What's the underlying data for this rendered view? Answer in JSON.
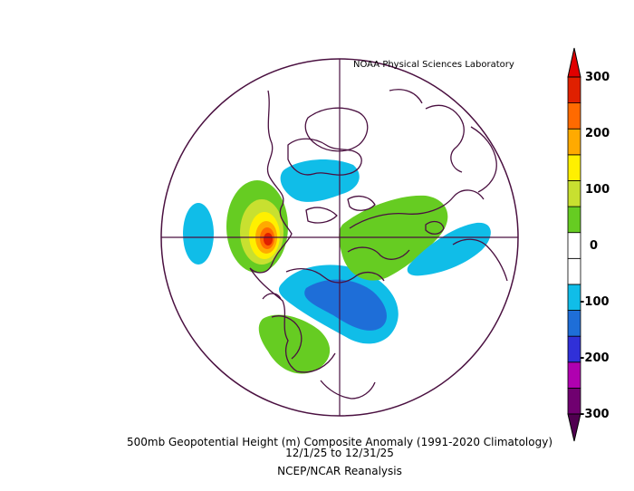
{
  "header": {
    "credit": "NOAA Physical Sciences Laboratory"
  },
  "footer": {
    "title": "500mb Geopotential Height (m) Composite Anomaly (1991-2020 Climatology)",
    "date_range": "12/1/25  to 12/31/25",
    "dataset": "NCEP/NCAR Reanalysis"
  },
  "colorbar": {
    "tick_labels": [
      "300",
      "200",
      "100",
      "0",
      "-100",
      "-200",
      "-300"
    ],
    "colors": [
      "#700070",
      "#b000b0",
      "#3030d8",
      "#1e6ed8",
      "#10bde8",
      "#ffffff",
      "#ffffff",
      "#66cc22",
      "#c8e030",
      "#fff000",
      "#ffaa00",
      "#ff6a00",
      "#e02000"
    ]
  },
  "map": {
    "projection": "north-polar-stereographic",
    "outline_color": "#4a1040",
    "anomaly_features": [
      {
        "label": "positive-pacific-nw",
        "value_m": 260
      },
      {
        "label": "negative-gulf-of-alaska",
        "value_m": -70
      },
      {
        "label": "negative-canada-arctic",
        "value_m": -70
      },
      {
        "label": "negative-siberia-arctic",
        "value_m": -110
      },
      {
        "label": "positive-europe",
        "value_m": 100
      },
      {
        "label": "negative-north-atlantic",
        "value_m": -70
      },
      {
        "label": "positive-east-asia",
        "value_m": 80
      }
    ]
  }
}
